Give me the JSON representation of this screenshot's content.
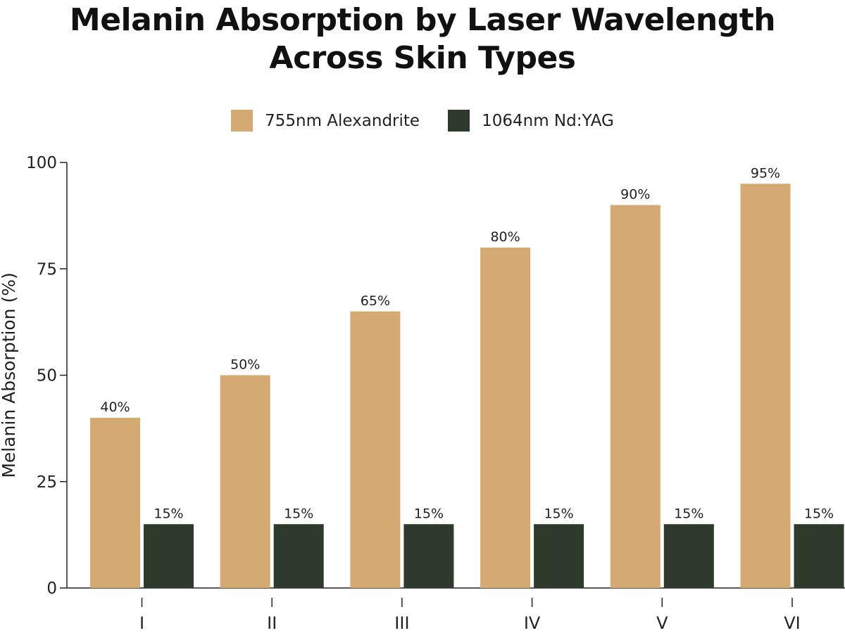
{
  "chart_data": {
    "type": "bar",
    "title": [
      "Melanin Absorption by Laser Wavelength",
      "Across Skin Types"
    ],
    "xlabel": "",
    "ylabel": "Melanin Absorption (%)",
    "ylim": [
      0,
      100
    ],
    "yticks": [
      0,
      25,
      50,
      75,
      100
    ],
    "categories": [
      "I",
      "II",
      "III",
      "IV",
      "V",
      "VI"
    ],
    "series": [
      {
        "name": "755nm Alexandrite",
        "color": "#d4aa72",
        "values": [
          40,
          50,
          65,
          80,
          90,
          95
        ],
        "labels": [
          "40%",
          "50%",
          "65%",
          "80%",
          "90%",
          "95%"
        ]
      },
      {
        "name": "1064nm Nd:YAG",
        "color": "#2e3a2c",
        "values": [
          15,
          15,
          15,
          15,
          15,
          15
        ],
        "labels": [
          "15%",
          "15%",
          "15%",
          "15%",
          "15%",
          "15%"
        ]
      }
    ],
    "legend_position": "top-center",
    "grid": false
  }
}
